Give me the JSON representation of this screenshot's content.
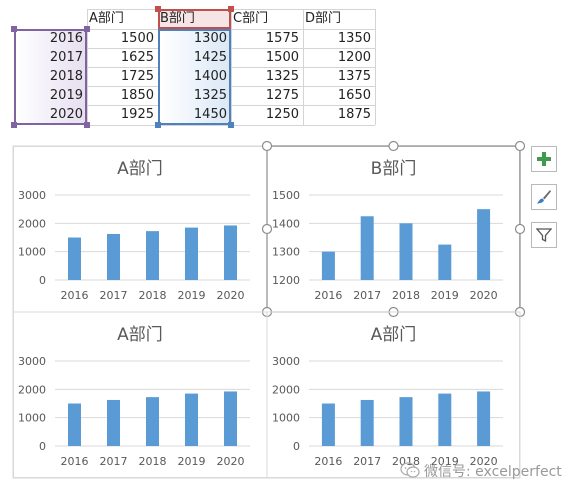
{
  "sheet": {
    "headers": [
      "A部门",
      "B部门",
      "C部门",
      "D部门"
    ],
    "rows": [
      {
        "year": "2016",
        "a": "1500",
        "b": "1300",
        "c": "1575",
        "d": "1350"
      },
      {
        "year": "2017",
        "a": "1625",
        "b": "1425",
        "c": "1500",
        "d": "1200"
      },
      {
        "year": "2018",
        "a": "1725",
        "b": "1400",
        "c": "1325",
        "d": "1375"
      },
      {
        "year": "2019",
        "a": "1850",
        "b": "1325",
        "c": "1275",
        "d": "1650"
      },
      {
        "year": "2020",
        "a": "1925",
        "b": "1450",
        "c": "1250",
        "d": "1875"
      }
    ]
  },
  "colors": {
    "bar": "#5B9BD5",
    "selection_purple": "#8064A2",
    "selection_red": "#C0504D",
    "selection_blue": "#4F81BD",
    "axis_text": "#595959",
    "gridline": "#D9D9D9"
  },
  "chart_data": [
    {
      "type": "bar",
      "title": "A部门",
      "categories": [
        "2016",
        "2017",
        "2018",
        "2019",
        "2020"
      ],
      "values": [
        1500,
        1625,
        1725,
        1850,
        1925
      ],
      "ylim": [
        0,
        3000
      ],
      "yticks": [
        0,
        1000,
        2000,
        3000
      ],
      "grid": true,
      "selected": false
    },
    {
      "type": "bar",
      "title": "B部门",
      "categories": [
        "2016",
        "2017",
        "2018",
        "2019",
        "2020"
      ],
      "values": [
        1300,
        1425,
        1400,
        1325,
        1450
      ],
      "ylim": [
        1200,
        1500
      ],
      "yticks": [
        1200,
        1300,
        1400,
        1500
      ],
      "grid": true,
      "selected": true
    },
    {
      "type": "bar",
      "title": "A部门",
      "categories": [
        "2016",
        "2017",
        "2018",
        "2019",
        "2020"
      ],
      "values": [
        1500,
        1625,
        1725,
        1850,
        1925
      ],
      "ylim": [
        0,
        3000
      ],
      "yticks": [
        0,
        1000,
        2000,
        3000
      ],
      "grid": true,
      "selected": false
    },
    {
      "type": "bar",
      "title": "A部门",
      "categories": [
        "2016",
        "2017",
        "2018",
        "2019",
        "2020"
      ],
      "values": [
        1500,
        1625,
        1725,
        1850,
        1925
      ],
      "ylim": [
        0,
        3000
      ],
      "yticks": [
        0,
        1000,
        2000,
        3000
      ],
      "grid": true,
      "selected": false
    }
  ],
  "side_buttons": [
    {
      "icon": "plus-icon",
      "name": "chart-elements-button"
    },
    {
      "icon": "brush-icon",
      "name": "chart-styles-button"
    },
    {
      "icon": "filter-icon",
      "name": "chart-filters-button"
    }
  ],
  "watermark": "微信号: excelperfect"
}
